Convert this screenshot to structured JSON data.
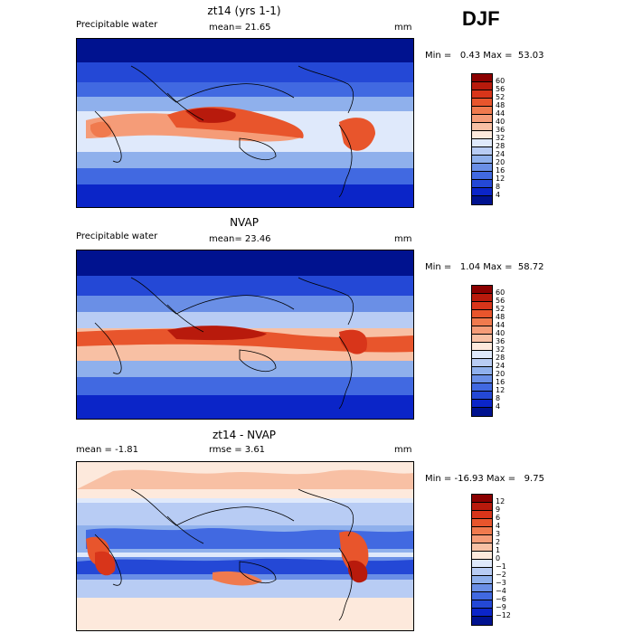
{
  "season_label": "DJF",
  "panels": [
    {
      "title": "zt14 (yrs 1-1)",
      "variable": "Precipitable water",
      "stat_text": "mean=  21.65",
      "units": "mm",
      "minmax": "Min =   0.43 Max =  53.03",
      "kind": "abs"
    },
    {
      "title": "NVAP",
      "variable": "Precipitable water",
      "stat_text": "mean=  23.46",
      "units": "mm",
      "minmax": "Min =   1.04 Max =  58.72",
      "kind": "abs"
    },
    {
      "title": "zt14 - NVAP",
      "variable": "",
      "stat_text_left": "mean =  -1.81",
      "stat_text": "rmse =   3.61",
      "units": "mm",
      "minmax": "Min = -16.93 Max =   9.75",
      "kind": "diff"
    }
  ],
  "colorbars": {
    "abs": {
      "labels": [
        "60",
        "56",
        "52",
        "48",
        "44",
        "40",
        "36",
        "32",
        "28",
        "24",
        "20",
        "16",
        "12",
        "8",
        "4"
      ],
      "colors": [
        "#8b0000",
        "#b81a0c",
        "#d8351a",
        "#e8552c",
        "#f07a4e",
        "#f59c78",
        "#f8c0a4",
        "#fde9dc",
        "#dfe9fb",
        "#b8ccf4",
        "#8fb0ec",
        "#6a8fe6",
        "#4169e1",
        "#2448d6",
        "#0b25c8",
        "#00128f"
      ]
    },
    "diff": {
      "labels": [
        "12",
        "9",
        "6",
        "4",
        "3",
        "2",
        "1",
        "0",
        "−1",
        "−2",
        "−3",
        "−4",
        "−6",
        "−9",
        "−12"
      ],
      "colors": [
        "#8b0000",
        "#b81a0c",
        "#d8351a",
        "#e8552c",
        "#f07a4e",
        "#f59c78",
        "#f8c0a4",
        "#fde9dc",
        "#dfe9fb",
        "#b8ccf4",
        "#8fb0ec",
        "#6a8fe6",
        "#4169e1",
        "#2448d6",
        "#0b25c8",
        "#00128f"
      ]
    }
  }
}
